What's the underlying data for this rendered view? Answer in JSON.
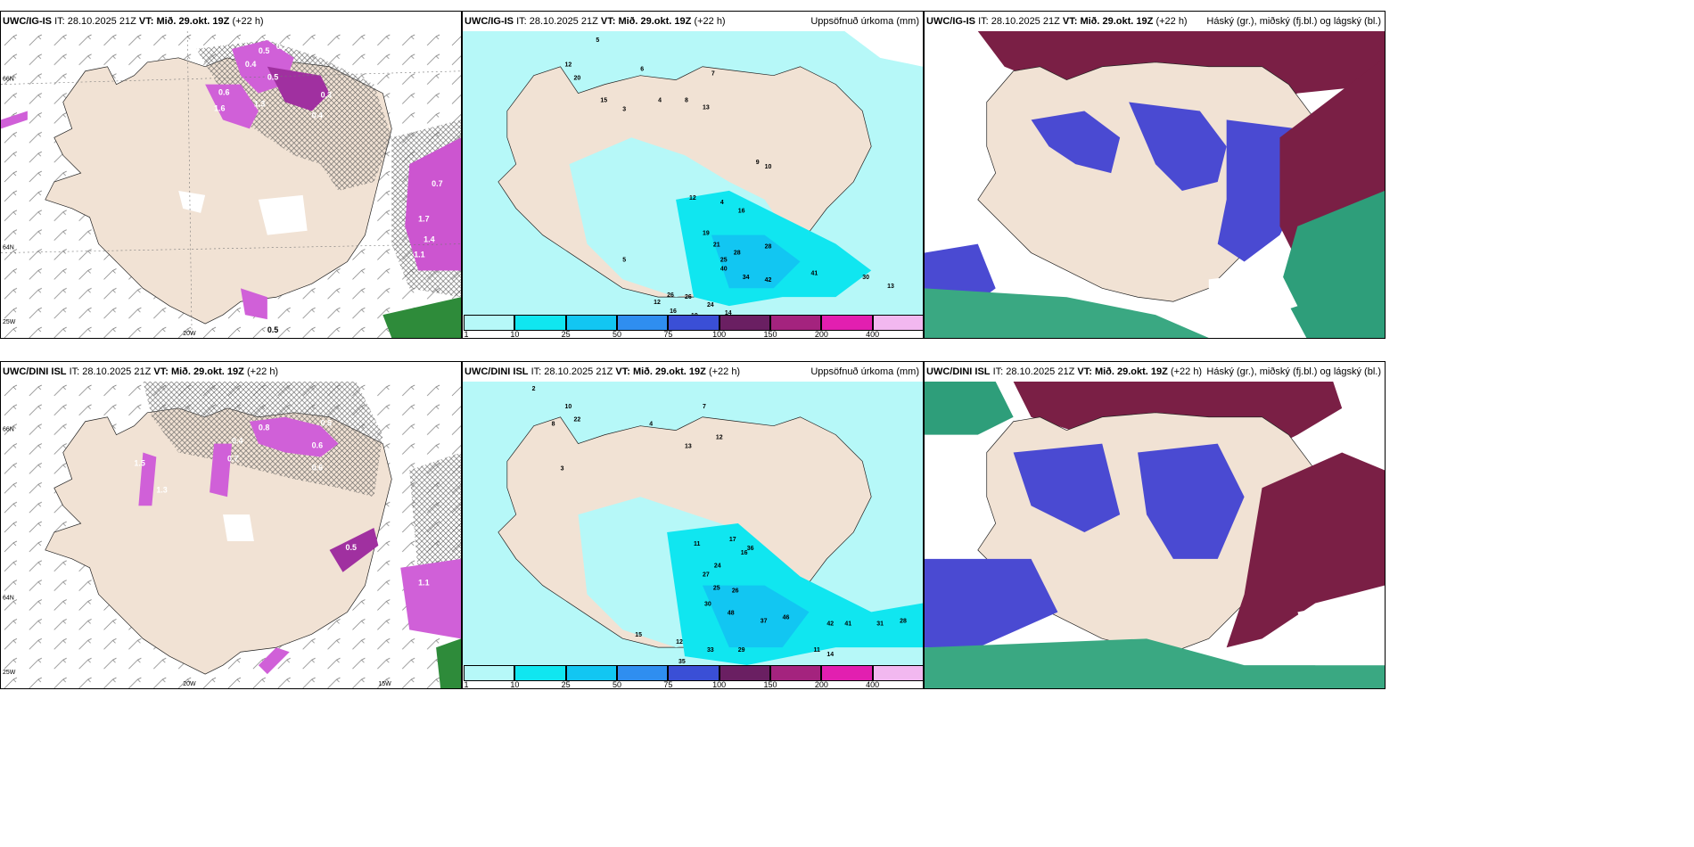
{
  "panels": [
    {
      "id": "p1",
      "model": "UWC/IG-IS",
      "it_label": "IT:",
      "it": "28.10.2025 21Z",
      "vt_label": "VT:",
      "vt": "Mið. 29.okt. 19Z",
      "lead": "(+22 h)",
      "right": ""
    },
    {
      "id": "p2",
      "model": "UWC/IG-IS",
      "it_label": "IT:",
      "it": "28.10.2025 21Z",
      "vt_label": "VT:",
      "vt": "Mið. 29.okt. 19Z",
      "lead": "(+22 h)",
      "right": "Uppsöfnuð úrkoma (mm)"
    },
    {
      "id": "p3",
      "model": "UWC/IG-IS",
      "it_label": "IT:",
      "it": "28.10.2025 21Z",
      "vt_label": "VT:",
      "vt": "Mið. 29.okt. 19Z",
      "lead": "(+22 h)",
      "right": "Háský (gr.), miðský (fj.bl.) og lágský (bl.)"
    },
    {
      "id": "p4",
      "model": "UWC/DINI ISL",
      "it_label": "IT:",
      "it": "28.10.2025 21Z",
      "vt_label": "VT:",
      "vt": "Mið. 29.okt. 19Z",
      "lead": "(+22 h)",
      "right": ""
    },
    {
      "id": "p5",
      "model": "UWC/DINI ISL",
      "it_label": "IT:",
      "it": "28.10.2025 21Z",
      "vt_label": "VT:",
      "vt": "Mið. 29.okt. 19Z",
      "lead": "(+22 h)",
      "right": "Uppsöfnuð úrkoma (mm)"
    },
    {
      "id": "p6",
      "model": "UWC/DINI ISL",
      "it_label": "IT:",
      "it": "28.10.2025 21Z",
      "vt_label": "VT:",
      "vt": "Mið. 29.okt. 19Z",
      "lead": "(+22 h)",
      "right": "Háský (gr.), miðský (fj.bl.) og lágský (bl.)"
    }
  ],
  "grid_labels": {
    "lat_66": "66N",
    "lat_64": "64N",
    "lon_25": "25W",
    "lon_20": "20W",
    "lon_15": "15W",
    "lat_65": "65N"
  },
  "colorbar": {
    "ticks": [
      "1",
      "10",
      "25",
      "50",
      "75",
      "100",
      "150",
      "200",
      "400"
    ],
    "colors": [
      "#b6f8f8",
      "#10e6f0",
      "#12c6f2",
      "#2f8ef0",
      "#3a4fd6",
      "#6a1f62",
      "#a4237e",
      "#e21fb0",
      "#f2b8f0"
    ]
  },
  "precip_labels_top": [
    "5",
    "6",
    "12",
    "20",
    "15",
    "3",
    "4",
    "7",
    "8",
    "13",
    "12",
    "10",
    "5",
    "9",
    "4",
    "19",
    "25",
    "34",
    "42",
    "41",
    "30",
    "13",
    "21",
    "40",
    "28",
    "16",
    "28",
    "19",
    "24",
    "14",
    "11",
    "26",
    "26",
    "16",
    "12"
  ],
  "precip_labels_bot": [
    "2",
    "10",
    "22",
    "8",
    "4",
    "13",
    "7",
    "12",
    "3",
    "11",
    "17",
    "16",
    "24",
    "27",
    "25",
    "26",
    "30",
    "48",
    "37",
    "46",
    "42",
    "41",
    "31",
    "28",
    "33",
    "35",
    "29",
    "11",
    "14",
    "12",
    "36",
    "15"
  ],
  "snow_labels_top": [
    "0.5",
    "0.4",
    "0.3",
    "0.5",
    "0.6",
    "0.4",
    "0.7",
    "1.6",
    "1.3",
    "1.7",
    "0.3",
    "1.4",
    "1.1",
    "0.5"
  ],
  "snow_labels_bot": [
    "0.5",
    "0.6",
    "0.8",
    "0.4",
    "1.1",
    "0.7",
    "0.6",
    "1.3",
    "0.5",
    "1.5"
  ]
}
